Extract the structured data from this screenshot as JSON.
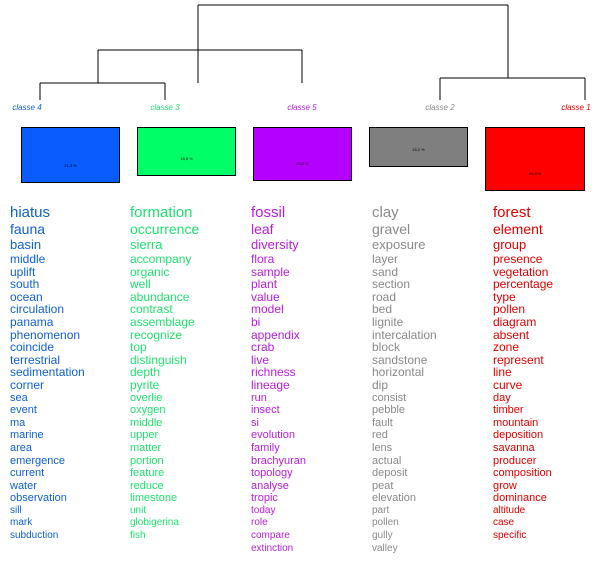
{
  "colors": {
    "classe_4": "#1060d8",
    "classe_3": "#22e070",
    "classe_5": "#b81ee0",
    "classe_2": "#8a8a8a",
    "classe_1": "#e00000",
    "box_4": "#0a5cff",
    "box_3": "#00ff66",
    "box_5": "#b400ff",
    "box_2": "#7f7f7f",
    "box_1": "#ff0000"
  },
  "classes": [
    {
      "id": "classe_4",
      "label": "classe 4",
      "percent": "21,3 %",
      "words": [
        "hiatus",
        "fauna",
        "basin",
        "middle",
        "uplift",
        "south",
        "ocean",
        "circulation",
        "panama",
        "phenomenon",
        "coincide",
        "terrestrial",
        "sedimentation",
        "corner",
        "sea",
        "event",
        "ma",
        "marine",
        "area",
        "emergence",
        "current",
        "water",
        "observation",
        "sill",
        "mark",
        "subduction"
      ]
    },
    {
      "id": "classe_3",
      "label": "classe 3",
      "percent": "18,5 %",
      "words": [
        "formation",
        "occurrence",
        "sierra",
        "accompany",
        "organic",
        "well",
        "abundance",
        "contrast",
        "assemblage",
        "recognize",
        "top",
        "distinguish",
        "depth",
        "pyrite",
        "overlie",
        "oxygen",
        "middle",
        "upper",
        "matter",
        "portion",
        "feature",
        "reduce",
        "limestone",
        "unit",
        "globigerina",
        "fish"
      ]
    },
    {
      "id": "classe_5",
      "label": "classe 5",
      "percent": "20,0 %",
      "words": [
        "fossil",
        "leaf",
        "diversity",
        "flora",
        "sample",
        "plant",
        "value",
        "model",
        "bi",
        "appendix",
        "crab",
        "live",
        "richness",
        "lineage",
        "run",
        "insect",
        "si",
        "evolution",
        "family",
        "brachyuran",
        "topology",
        "analyse",
        "tropic",
        "today",
        "role",
        "compare",
        "extinction"
      ]
    },
    {
      "id": "classe_2",
      "label": "classe 2",
      "percent": "15,2 %",
      "words": [
        "clay",
        "gravel",
        "exposure",
        "layer",
        "sand",
        "section",
        "road",
        "bed",
        "lignite",
        "intercalation",
        "block",
        "sandstone",
        "horizontal",
        "dip",
        "consist",
        "pebble",
        "fault",
        "red",
        "lens",
        "actual",
        "deposit",
        "peat",
        "elevation",
        "part",
        "pollen",
        "gully",
        "valley"
      ]
    },
    {
      "id": "classe_1",
      "label": "classe 1",
      "percent": "24,9 %",
      "words": [
        "forest",
        "element",
        "group",
        "presence",
        "vegetation",
        "percentage",
        "type",
        "pollen",
        "diagram",
        "absent",
        "zone",
        "represent",
        "line",
        "curve",
        "day",
        "timber",
        "mountain",
        "deposition",
        "savanna",
        "producer",
        "composition",
        "grow",
        "dominance",
        "altitude",
        "case",
        "specific"
      ]
    }
  ]
}
